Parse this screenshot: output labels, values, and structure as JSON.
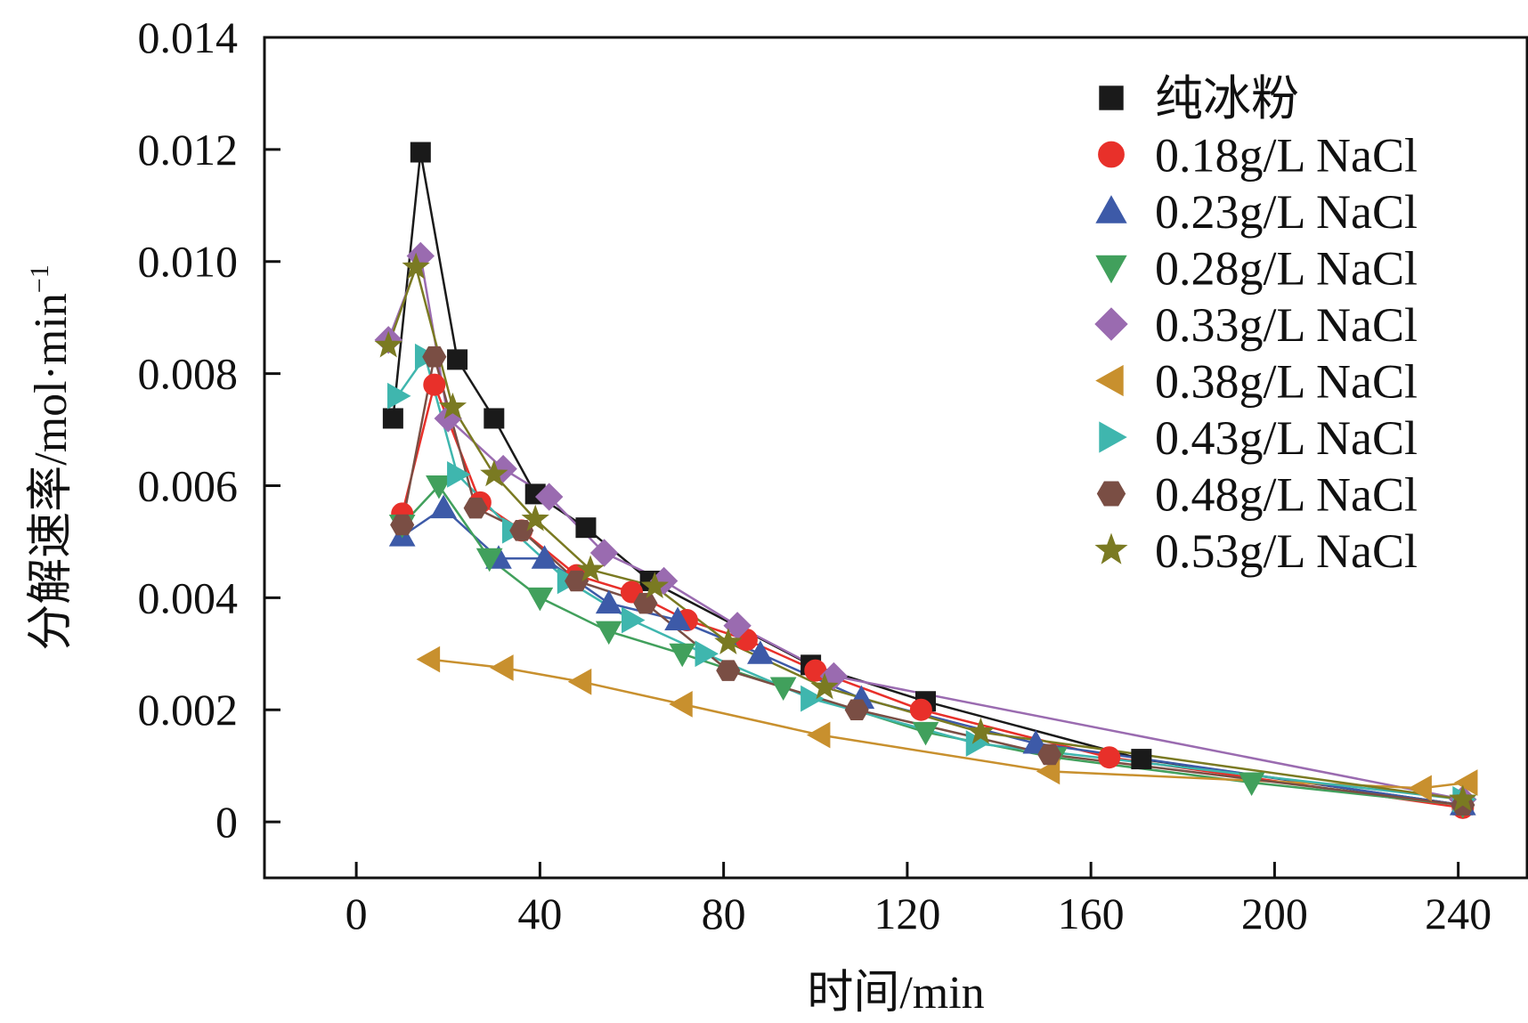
{
  "chart_data": {
    "type": "line",
    "title": "",
    "xlabel": "时间/min",
    "ylabel": "分解速率/mol·min",
    "ylabel_sup": "−1",
    "xlim": [
      -20,
      255
    ],
    "ylim": [
      -0.001,
      0.014
    ],
    "xticks": [
      0,
      40,
      80,
      120,
      160,
      200,
      240
    ],
    "xtick_labels": [
      "0",
      "40",
      "80",
      "120",
      "160",
      "200",
      "240"
    ],
    "yticks": [
      0,
      0.002,
      0.004,
      0.006,
      0.008,
      0.01,
      0.012,
      0.014
    ],
    "ytick_labels": [
      "0",
      "0.002",
      "0.004",
      "0.006",
      "0.008",
      "0.010",
      "0.012",
      "0.014"
    ],
    "legend_position": "top-right",
    "series": [
      {
        "name": "纯冰粉",
        "marker": "square",
        "color": "#1a1a1a",
        "x": [
          8,
          14,
          22,
          30,
          39,
          50,
          64,
          99,
          124,
          171,
          241
        ],
        "y": [
          0.0072,
          0.01195,
          0.00825,
          0.0072,
          0.00585,
          0.00525,
          0.0043,
          0.0028,
          0.00215,
          0.00112,
          0.0003
        ]
      },
      {
        "name": "0.18g/L NaCl",
        "marker": "circle",
        "color": "#e8302a",
        "x": [
          10,
          17,
          27,
          36,
          48,
          60,
          72,
          85,
          100,
          123,
          164,
          241
        ],
        "y": [
          0.0055,
          0.0078,
          0.0057,
          0.0052,
          0.0044,
          0.0041,
          0.0036,
          0.00325,
          0.0027,
          0.002,
          0.00115,
          0.00025
        ]
      },
      {
        "name": "0.23g/L NaCl",
        "marker": "triangle-up",
        "color": "#3d5aa8",
        "x": [
          10,
          19,
          31,
          41,
          55,
          70,
          88,
          110,
          148,
          241
        ],
        "y": [
          0.0051,
          0.0056,
          0.0047,
          0.0047,
          0.0039,
          0.0036,
          0.003,
          0.0022,
          0.0014,
          0.0003
        ]
      },
      {
        "name": "0.28g/L NaCl",
        "marker": "triangle-down",
        "color": "#41a05c",
        "x": [
          10,
          18,
          29,
          40,
          55,
          71,
          93,
          124,
          152,
          195,
          241
        ],
        "y": [
          0.0053,
          0.006,
          0.0047,
          0.004,
          0.0034,
          0.003,
          0.0024,
          0.0016,
          0.00115,
          0.0007,
          0.0003
        ]
      },
      {
        "name": "0.33g/L NaCl",
        "marker": "diamond",
        "color": "#9a6bb0",
        "x": [
          7,
          14,
          20,
          32,
          42,
          54,
          67,
          83,
          104,
          241
        ],
        "y": [
          0.0086,
          0.0101,
          0.0072,
          0.0063,
          0.0058,
          0.0048,
          0.0043,
          0.0035,
          0.0026,
          0.0004
        ]
      },
      {
        "name": "0.38g/L NaCl",
        "marker": "triangle-left",
        "color": "#c8902e",
        "x": [
          16,
          32,
          49,
          71,
          101,
          151,
          232,
          242
        ],
        "y": [
          0.0029,
          0.00275,
          0.0025,
          0.0021,
          0.00155,
          0.0009,
          0.0006,
          0.0007
        ]
      },
      {
        "name": "0.43g/L NaCl",
        "marker": "triangle-right",
        "color": "#3fb6ae",
        "x": [
          9,
          15,
          22,
          34,
          46,
          60,
          76,
          99,
          135,
          241
        ],
        "y": [
          0.0076,
          0.0083,
          0.0062,
          0.0052,
          0.0043,
          0.0036,
          0.003,
          0.0022,
          0.0014,
          0.0004
        ]
      },
      {
        "name": "0.48g/L NaCl",
        "marker": "hexagon",
        "color": "#7a4e44",
        "x": [
          10,
          17,
          26,
          36,
          48,
          63,
          81,
          109,
          151,
          241
        ],
        "y": [
          0.0053,
          0.0083,
          0.0056,
          0.0052,
          0.0043,
          0.0039,
          0.0027,
          0.002,
          0.0012,
          0.0003
        ]
      },
      {
        "name": "0.53g/L NaCl",
        "marker": "star",
        "color": "#7a7a22",
        "x": [
          7,
          13,
          21,
          30,
          39,
          51,
          65,
          81,
          102,
          136,
          241
        ],
        "y": [
          0.0085,
          0.0099,
          0.0074,
          0.0062,
          0.0054,
          0.0045,
          0.0042,
          0.0032,
          0.0024,
          0.0016,
          0.0004
        ]
      }
    ]
  }
}
